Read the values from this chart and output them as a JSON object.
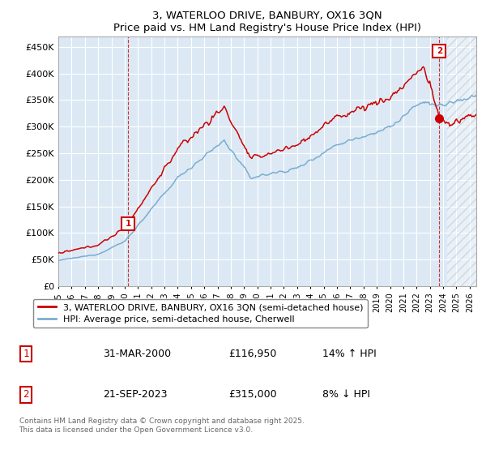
{
  "title": "3, WATERLOO DRIVE, BANBURY, OX16 3QN",
  "subtitle": "Price paid vs. HM Land Registry's House Price Index (HPI)",
  "yticks": [
    0,
    50000,
    100000,
    150000,
    200000,
    250000,
    300000,
    350000,
    400000,
    450000
  ],
  "ylim": [
    0,
    470000
  ],
  "xlim_start": 1995.0,
  "xlim_end": 2026.5,
  "line1_color": "#cc0000",
  "line2_color": "#7aadcf",
  "line1_label": "3, WATERLOO DRIVE, BANBURY, OX16 3QN (semi-detached house)",
  "line2_label": "HPI: Average price, semi-detached house, Cherwell",
  "marker1_year": 2000.25,
  "marker1_value": 116950,
  "marker2_year": 2023.72,
  "marker2_value": 315000,
  "vline_end_year": 2024.5,
  "background_color": "#ffffff",
  "plot_bg_color": "#dce9f5",
  "grid_color": "#ffffff",
  "footer": "Contains HM Land Registry data © Crown copyright and database right 2025.\nThis data is licensed under the Open Government Licence v3.0."
}
